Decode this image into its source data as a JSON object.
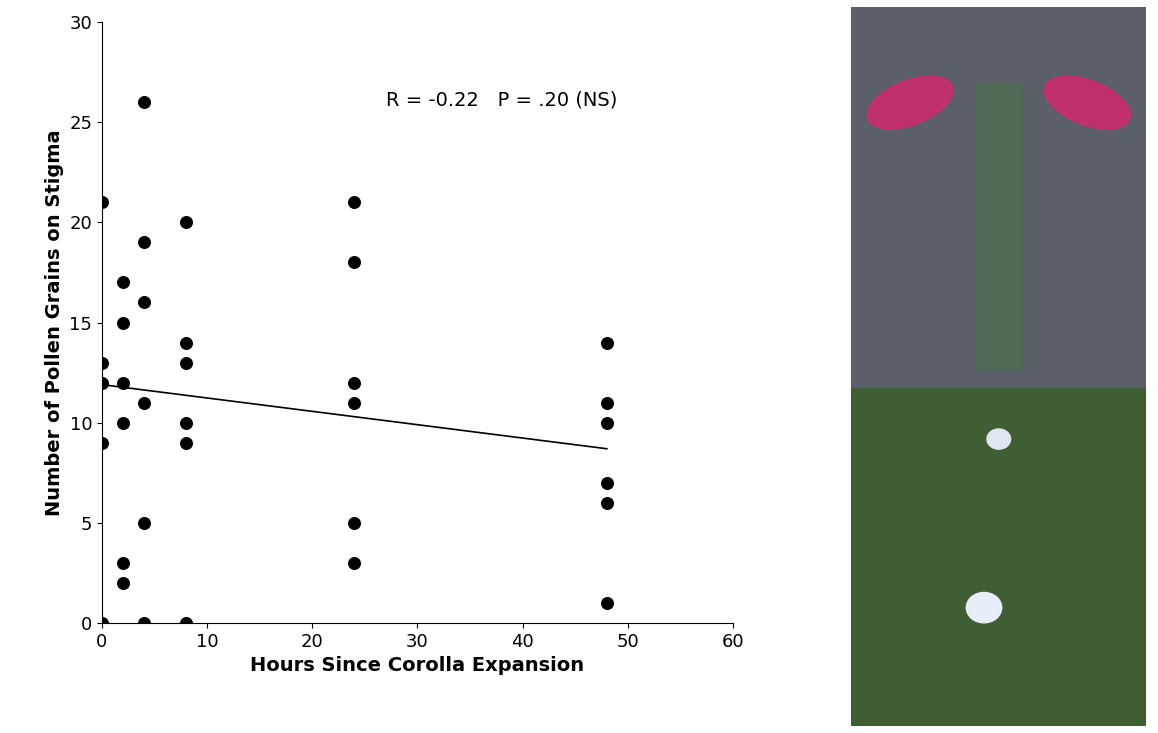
{
  "chart_data": {
    "type": "scatter",
    "x_label": "Hours Since Corolla Expansion",
    "y_label": "Number of Pollen Grains on Stigma",
    "annotation": "R = -0.22   P = .20 (NS)",
    "x": [
      0,
      0,
      0,
      0,
      0,
      2,
      2,
      2,
      2,
      2,
      2,
      4,
      4,
      4,
      4,
      4,
      4,
      8,
      8,
      8,
      8,
      8,
      8,
      24,
      24,
      24,
      24,
      24,
      24,
      48,
      48,
      48,
      48,
      48,
      48
    ],
    "values": [
      21,
      13,
      12,
      9,
      0,
      17,
      15,
      12,
      10,
      3,
      2,
      26,
      19,
      16,
      11,
      5,
      0,
      20,
      14,
      13,
      10,
      9,
      0,
      21,
      18,
      12,
      11,
      5,
      3,
      14,
      11,
      10,
      7,
      6,
      1
    ],
    "color": "#000000",
    "marker": "circle",
    "trend_line": {
      "x": [
        0,
        48
      ],
      "values": [
        11.9,
        8.7
      ],
      "color": "#000000"
    },
    "xlim": [
      0,
      60
    ],
    "xticks": [
      0,
      10,
      20,
      30,
      40,
      50,
      60
    ],
    "ylim": [
      0,
      30
    ],
    "yticks": [
      0,
      5,
      10,
      15,
      20,
      25,
      30
    ],
    "grid": false
  }
}
